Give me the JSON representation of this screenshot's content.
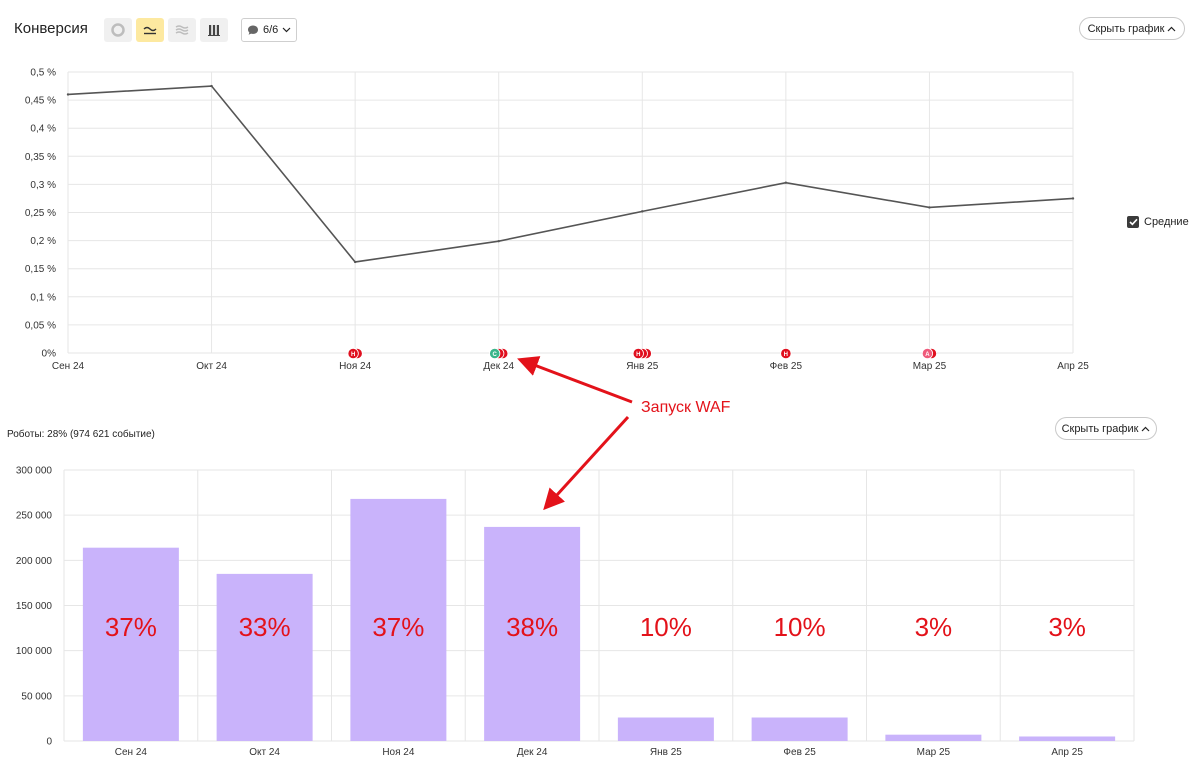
{
  "header": {
    "title": "Конверсия",
    "segments_label": "6/6",
    "hide_chart_label": "Скрыть график",
    "tools": [
      {
        "name": "pie-icon",
        "active": false
      },
      {
        "name": "line-icon",
        "active": true
      },
      {
        "name": "area-icon",
        "active": false
      },
      {
        "name": "columns-icon",
        "active": false
      }
    ]
  },
  "legend": {
    "label": "Средние",
    "checked": true
  },
  "robots": {
    "summary": "Роботы: 28% (974 621 событие)",
    "hide_chart_label": "Скрыть график"
  },
  "annotation": {
    "text": "Запуск WAF",
    "color": "#e3121a"
  },
  "colors": {
    "line": "#555555",
    "bar": "#c9b3fb",
    "grid": "#e6e6e6",
    "annotation": "#e3121a",
    "badge_red": "#e0101f",
    "badge_green": "#3bb58a",
    "badge_pink": "#ef5a7b"
  },
  "chart_data": [
    {
      "type": "line",
      "title": "",
      "categories": [
        "Сен 24",
        "Окт 24",
        "Ноя 24",
        "Дек 24",
        "Янв 25",
        "Фев 25",
        "Мар 25",
        "Апр 25"
      ],
      "series": [
        {
          "name": "Средние",
          "values": [
            0.46,
            0.475,
            0.162,
            0.199,
            0.252,
            0.303,
            0.259,
            0.275
          ]
        }
      ],
      "yticks": [
        "0%",
        "0,05 %",
        "0,1 %",
        "0,15 %",
        "0,2 %",
        "0,25 %",
        "0,3 %",
        "0,35 %",
        "0,4 %",
        "0,45 %",
        "0,5 %"
      ],
      "ylim": [
        0,
        0.5
      ],
      "grid": true,
      "legend": "right",
      "notes": [
        {
          "category": "Ноя 24",
          "badges": [
            {
              "letter": "Н",
              "color": "red"
            },
            {
              "letter": "",
              "color": "red"
            }
          ]
        },
        {
          "category": "Дек 24",
          "badges": [
            {
              "letter": "С",
              "color": "green"
            },
            {
              "letter": "",
              "color": "red"
            },
            {
              "letter": "",
              "color": "red"
            }
          ]
        },
        {
          "category": "Янв 25",
          "badges": [
            {
              "letter": "Н",
              "color": "red"
            },
            {
              "letter": "",
              "color": "red"
            },
            {
              "letter": "",
              "color": "red"
            }
          ]
        },
        {
          "category": "Фев 25",
          "badges": [
            {
              "letter": "Н",
              "color": "red"
            }
          ]
        },
        {
          "category": "Мар 25",
          "badges": [
            {
              "letter": "А",
              "color": "pink"
            },
            {
              "letter": "",
              "color": "red"
            }
          ]
        }
      ]
    },
    {
      "type": "bar",
      "title": "",
      "categories": [
        "Сен 24",
        "Окт 24",
        "Ноя 24",
        "Дек 24",
        "Янв 25",
        "Фев 25",
        "Мар 25",
        "Апр 25"
      ],
      "values": [
        214000,
        185000,
        268000,
        237000,
        26000,
        26000,
        7000,
        5000
      ],
      "labels": [
        "37%",
        "33%",
        "37%",
        "38%",
        "10%",
        "10%",
        "3%",
        "3%"
      ],
      "yticks": [
        "0",
        "50 000",
        "100 000",
        "150 000",
        "200 000",
        "250 000",
        "300 000"
      ],
      "ylim": [
        0,
        300000
      ],
      "grid": true
    }
  ]
}
